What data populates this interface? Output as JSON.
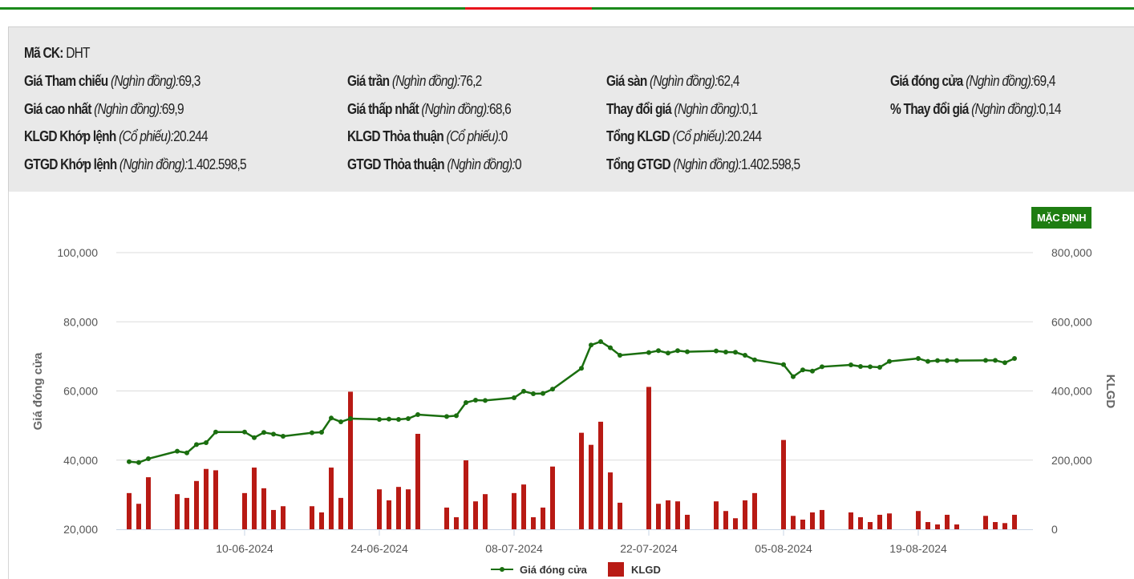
{
  "info": {
    "symbol_label": "Mã CK:",
    "symbol": "DHT",
    "fields": [
      {
        "label": "Giá Tham chiếu",
        "unit": "(Nghìn đồng):",
        "value": "69,3"
      },
      {
        "label": "Giá trần",
        "unit": "(Nghìn đồng):",
        "value": "76,2"
      },
      {
        "label": "Giá sàn",
        "unit": "(Nghìn đồng):",
        "value": "62,4"
      },
      {
        "label": "Giá đóng cửa",
        "unit": "(Nghìn đồng):",
        "value": "69,4"
      },
      {
        "label": "Giá cao nhất",
        "unit": "(Nghìn đồng):",
        "value": "69,9"
      },
      {
        "label": "Giá thấp nhất",
        "unit": "(Nghìn đồng):",
        "value": "68,6"
      },
      {
        "label": "Thay đổi giá",
        "unit": "(Nghìn đồng):",
        "value": "0,1"
      },
      {
        "label": "% Thay đổi giá",
        "unit": "(Nghìn đồng):",
        "value": "0,14"
      },
      {
        "label": "KLGD Khớp lệnh",
        "unit": "(Cổ phiếu):",
        "value": "20.244"
      },
      {
        "label": "KLGD Thỏa thuận",
        "unit": "(Cổ phiếu):",
        "value": "0"
      },
      {
        "label": "Tổng KLGD",
        "unit": "(Cổ phiếu):",
        "value": "20.244"
      },
      {
        "label": "GTGD Khớp lệnh",
        "unit": "(Nghìn đồng):",
        "value": "1.402.598,5"
      },
      {
        "label": "GTGD Thỏa thuận",
        "unit": "(Nghìn đồng):",
        "value": "0"
      },
      {
        "label": "Tổng GTGD",
        "unit": "(Nghìn đồng):",
        "value": "1.402.598,5"
      }
    ]
  },
  "reset_button": "MẶC ĐỊNH",
  "colors": {
    "price_line": "#1a6e0f",
    "volume_bar": "#b81a14",
    "button": "#1e7d12",
    "top_line": "#1a8a1a",
    "top_line_accent": "#e8141b"
  },
  "chart_data": {
    "type": "line+bar",
    "ylabel": "Giá đóng cửa",
    "y2label": "KLGD",
    "ylim": [
      20000,
      100000
    ],
    "y2lim": [
      0,
      800000
    ],
    "yticks": [
      "100,000",
      "80,000",
      "60,000",
      "40,000",
      "20,000"
    ],
    "y2ticks": [
      "800,000",
      "600,000",
      "400,000",
      "200,000",
      "0"
    ],
    "xticks": [
      "10-06-2024",
      "24-06-2024",
      "08-07-2024",
      "22-07-2024",
      "05-08-2024",
      "19-08-2024"
    ],
    "grid": true,
    "legend": "bottom",
    "x": [
      "2024-05-29",
      "2024-05-30",
      "2024-05-31",
      "2024-06-03",
      "2024-06-04",
      "2024-06-05",
      "2024-06-06",
      "2024-06-07",
      "2024-06-10",
      "2024-06-11",
      "2024-06-12",
      "2024-06-13",
      "2024-06-14",
      "2024-06-17",
      "2024-06-18",
      "2024-06-19",
      "2024-06-20",
      "2024-06-21",
      "2024-06-24",
      "2024-06-25",
      "2024-06-26",
      "2024-06-27",
      "2024-06-28",
      "2024-07-01",
      "2024-07-02",
      "2024-07-03",
      "2024-07-04",
      "2024-07-05",
      "2024-07-08",
      "2024-07-09",
      "2024-07-10",
      "2024-07-11",
      "2024-07-12",
      "2024-07-15",
      "2024-07-16",
      "2024-07-17",
      "2024-07-18",
      "2024-07-19",
      "2024-07-22",
      "2024-07-23",
      "2024-07-24",
      "2024-07-25",
      "2024-07-26",
      "2024-07-29",
      "2024-07-30",
      "2024-07-31",
      "2024-08-01",
      "2024-08-02",
      "2024-08-05",
      "2024-08-06",
      "2024-08-07",
      "2024-08-08",
      "2024-08-09",
      "2024-08-12",
      "2024-08-13",
      "2024-08-14",
      "2024-08-15",
      "2024-08-16",
      "2024-08-19",
      "2024-08-20",
      "2024-08-21",
      "2024-08-22",
      "2024-08-23",
      "2024-08-26",
      "2024-08-27",
      "2024-08-28",
      "2024-08-29"
    ],
    "series": [
      {
        "name": "Giá đóng cửa",
        "type": "line",
        "values": [
          39550,
          39300,
          40400,
          42570,
          42100,
          44500,
          45050,
          48130,
          48130,
          46500,
          48000,
          47520,
          46900,
          47900,
          48060,
          52160,
          51070,
          52000,
          51770,
          51850,
          51770,
          52000,
          53160,
          52620,
          52850,
          56640,
          57340,
          57260,
          58030,
          59900,
          59190,
          59270,
          60510,
          66540,
          73270,
          74260,
          72480,
          70320,
          71090,
          71640,
          70950,
          71640,
          71330,
          71560,
          71250,
          71180,
          70320,
          69000,
          67610,
          64130,
          66080,
          65750,
          67000,
          67540,
          67080,
          67000,
          66850,
          68540,
          69400,
          68540,
          68770,
          68770,
          68770,
          68850,
          68850,
          68160,
          69400
        ]
      },
      {
        "name": "KLGD",
        "type": "bar",
        "values": [
          104700,
          73700,
          150500,
          101600,
          90700,
          139600,
          174500,
          170600,
          104700,
          178400,
          118600,
          55800,
          66700,
          66700,
          48800,
          178400,
          90700,
          397800,
          115500,
          83700,
          122500,
          115500,
          276000,
          62800,
          34900,
          199300,
          80700,
          101600,
          104700,
          129500,
          34900,
          62800,
          181400,
          279100,
          244200,
          311000,
          164400,
          76800,
          411700,
          73700,
          83700,
          80700,
          41900,
          80700,
          52800,
          31900,
          83700,
          104700,
          258200,
          38800,
          27900,
          48800,
          55800,
          48800,
          34900,
          20900,
          41900,
          45800,
          52800,
          20900,
          14000,
          41900,
          14000,
          38800,
          20900,
          17900,
          41900
        ]
      }
    ]
  }
}
